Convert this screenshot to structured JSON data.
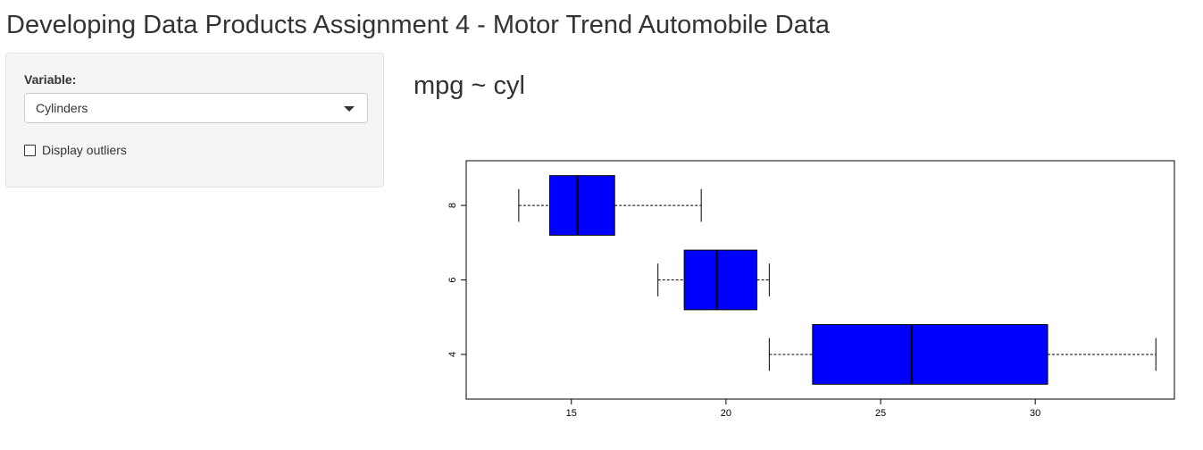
{
  "header": {
    "title": "Developing Data Products Assignment 4 - Motor Trend Automobile Data"
  },
  "sidebar": {
    "variable_label": "Variable:",
    "variable_selected": "Cylinders",
    "outliers_label": "Display outliers",
    "outliers_checked": false
  },
  "main": {
    "formula_title": "mpg ~ cyl"
  },
  "colors": {
    "box_fill": "#0000ff",
    "sidebar_bg": "#f5f5f5"
  },
  "chart_data": {
    "type": "boxplot",
    "orientation": "horizontal",
    "categories": [
      "4",
      "6",
      "8"
    ],
    "boxes": [
      {
        "category": "4",
        "whisker_low": 21.4,
        "q1": 22.8,
        "median": 26.0,
        "q3": 30.4,
        "whisker_high": 33.9
      },
      {
        "category": "6",
        "whisker_low": 17.8,
        "q1": 18.65,
        "median": 19.7,
        "q3": 21.0,
        "whisker_high": 21.4
      },
      {
        "category": "8",
        "whisker_low": 13.3,
        "q1": 14.3,
        "median": 15.2,
        "q3": 16.4,
        "whisker_high": 19.2
      }
    ],
    "x_ticks": [
      15,
      20,
      25,
      30
    ],
    "x_tick_labels": [
      "15",
      "20",
      "25",
      "30"
    ],
    "xlim": [
      11.6,
      34.5
    ],
    "xlabel": "",
    "ylabel": "",
    "title": "",
    "grid": false
  }
}
